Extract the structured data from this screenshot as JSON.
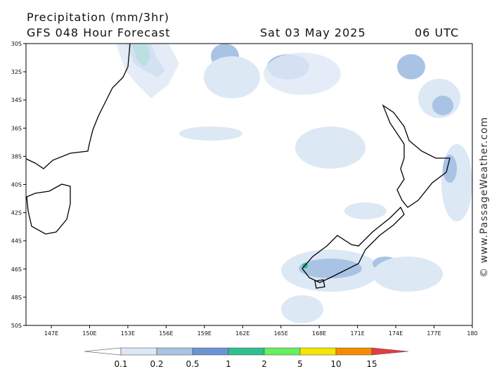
{
  "header": {
    "title": "Precipitation (mm/3hr)",
    "subtitle": "GFS 048 Hour Forecast",
    "date": "Sat 03 May 2025",
    "time": "06 UTC"
  },
  "lat_labels": [
    "30S",
    "32S",
    "34S",
    "36S",
    "38S",
    "40S",
    "42S",
    "44S",
    "46S",
    "48S",
    "50S"
  ],
  "lon_labels": [
    "147E",
    "150E",
    "153E",
    "156E",
    "159E",
    "162E",
    "165E",
    "168E",
    "171E",
    "174E",
    "177E",
    "180"
  ],
  "colorbar": {
    "labels": [
      "0.1",
      "0.2",
      "0.5",
      "1",
      "2",
      "5",
      "10",
      "15"
    ],
    "colors": [
      "#ffffff",
      "#dde8f5",
      "#a9c3e4",
      "#6b93d6",
      "#2dbf8c",
      "#66f060",
      "#f5e600",
      "#f58c00",
      "#e63c3c"
    ]
  },
  "watermark": "© www.PassageWeather.com"
}
